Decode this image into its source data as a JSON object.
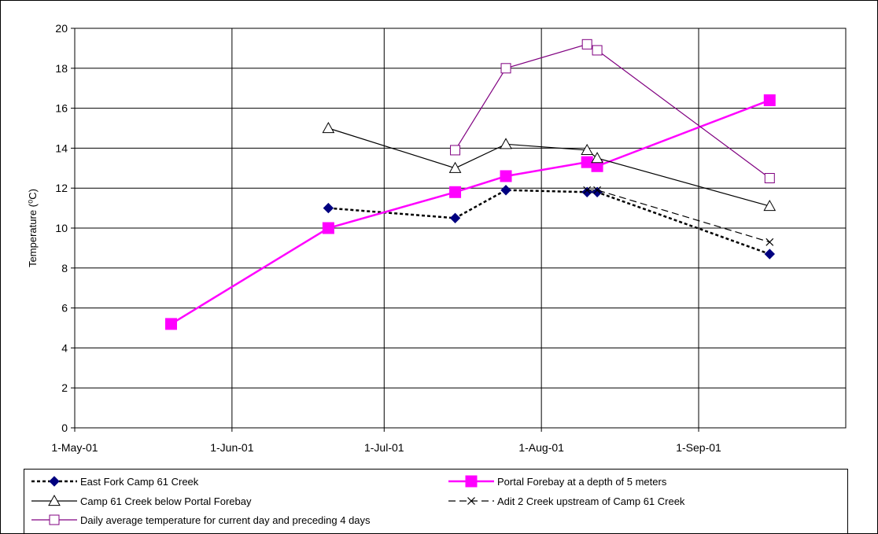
{
  "chart_data": {
    "type": "line",
    "title": "",
    "xlabel": "",
    "ylabel": "Temperature (⁰C)",
    "ylim": [
      0,
      20
    ],
    "yticks": [
      0,
      2,
      4,
      6,
      8,
      10,
      12,
      14,
      16,
      18,
      20
    ],
    "xlim": [
      "2001-05-01",
      "2001-09-30"
    ],
    "xticks": [
      {
        "date": "2001-05-01",
        "label": "1-May-01"
      },
      {
        "date": "2001-06-01",
        "label": "1-Jun-01"
      },
      {
        "date": "2001-07-01",
        "label": "1-Jul-01"
      },
      {
        "date": "2001-08-01",
        "label": "1-Aug-01"
      },
      {
        "date": "2001-09-01",
        "label": "1-Sep-01"
      }
    ],
    "grid": true,
    "legend_position": "bottom",
    "series": [
      {
        "name": "East Fork Camp 61 Creek",
        "color": "#000080",
        "line_color": "#000000",
        "dash": "dotted",
        "marker": "diamond-filled",
        "points": [
          {
            "x": "2001-06-20",
            "y": 11.0
          },
          {
            "x": "2001-07-15",
            "y": 10.5
          },
          {
            "x": "2001-07-25",
            "y": 11.9
          },
          {
            "x": "2001-08-10",
            "y": 11.8
          },
          {
            "x": "2001-08-12",
            "y": 11.8
          },
          {
            "x": "2001-09-15",
            "y": 8.7
          }
        ]
      },
      {
        "name": "Portal Forebay at a depth of 5 meters",
        "color": "#FF00FF",
        "line_color": "#FF00FF",
        "dash": "solid",
        "marker": "square-filled",
        "points": [
          {
            "x": "2001-05-20",
            "y": 5.2
          },
          {
            "x": "2001-06-20",
            "y": 10.0
          },
          {
            "x": "2001-07-15",
            "y": 11.8
          },
          {
            "x": "2001-07-25",
            "y": 12.6
          },
          {
            "x": "2001-08-10",
            "y": 13.3
          },
          {
            "x": "2001-08-12",
            "y": 13.1
          },
          {
            "x": "2001-09-15",
            "y": 16.4
          }
        ]
      },
      {
        "name": "Camp 61 Creek below Portal Forebay",
        "color": "#000000",
        "line_color": "#000000",
        "dash": "solid",
        "marker": "triangle-open",
        "points": [
          {
            "x": "2001-06-20",
            "y": 15.0
          },
          {
            "x": "2001-07-15",
            "y": 13.0
          },
          {
            "x": "2001-07-25",
            "y": 14.2
          },
          {
            "x": "2001-08-10",
            "y": 13.9
          },
          {
            "x": "2001-08-12",
            "y": 13.5
          },
          {
            "x": "2001-09-15",
            "y": 11.1
          }
        ]
      },
      {
        "name": "Adit 2 Creek upstream of Camp 61 Creek",
        "color": "#000000",
        "line_color": "#000000",
        "dash": "dashed",
        "marker": "x",
        "points": [
          {
            "x": "2001-08-10",
            "y": 11.9
          },
          {
            "x": "2001-08-12",
            "y": 11.9
          },
          {
            "x": "2001-09-15",
            "y": 9.3
          }
        ]
      },
      {
        "name": "Daily average temperature for current day and preceding 4 days",
        "color": "#800080",
        "line_color": "#800080",
        "dash": "solid",
        "marker": "square-open",
        "points": [
          {
            "x": "2001-07-15",
            "y": 13.9
          },
          {
            "x": "2001-07-25",
            "y": 18.0
          },
          {
            "x": "2001-08-10",
            "y": 19.2
          },
          {
            "x": "2001-08-12",
            "y": 18.9
          },
          {
            "x": "2001-09-15",
            "y": 12.5
          }
        ]
      }
    ]
  }
}
